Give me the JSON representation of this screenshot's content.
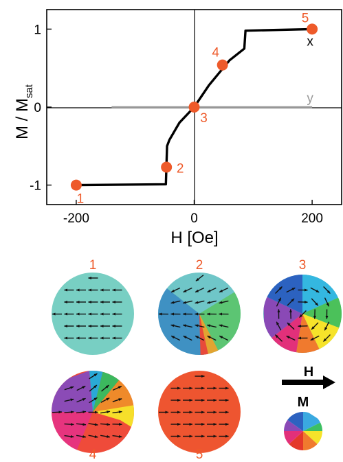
{
  "chart_data": {
    "type": "line",
    "xlabel": "H [Oe]",
    "ylabel": "M / M",
    "ylabel_sub": "sat",
    "xlim": [
      -250,
      250
    ],
    "ylim": [
      -1.25,
      1.25
    ],
    "xticks": [
      -200,
      0,
      200
    ],
    "xtick_labels": [
      "-200",
      "0",
      "200"
    ],
    "yticks": [
      1,
      0,
      -1
    ],
    "ytick_labels": [
      "1",
      "0",
      "-1"
    ],
    "series": [
      {
        "name": "x",
        "color": "#000000",
        "x": [
          -200,
          -48,
          -46,
          -42,
          -25,
          0,
          25,
          60,
          85,
          87,
          200
        ],
        "y": [
          -1.0,
          -0.99,
          -0.5,
          -0.42,
          -0.2,
          0.0,
          0.28,
          0.6,
          0.75,
          0.98,
          1.0
        ]
      },
      {
        "name": "y",
        "color": "#999999",
        "x": [
          -140,
          200
        ],
        "y": [
          0,
          0
        ]
      }
    ],
    "markers": {
      "color": "#ee5a2a",
      "points": [
        {
          "label": "1",
          "x": -200,
          "y": -1.0
        },
        {
          "label": "2",
          "x": -47,
          "y": -0.77
        },
        {
          "label": "3",
          "x": 0,
          "y": 0.0
        },
        {
          "label": "4",
          "x": 48,
          "y": 0.54
        },
        {
          "label": "5",
          "x": 200,
          "y": 1.0
        }
      ]
    }
  },
  "panels": {
    "titles": [
      "1",
      "2",
      "3",
      "4",
      "5"
    ],
    "field_label": "H",
    "magnetization_label": "M",
    "label_color": "#ee5a2a"
  }
}
